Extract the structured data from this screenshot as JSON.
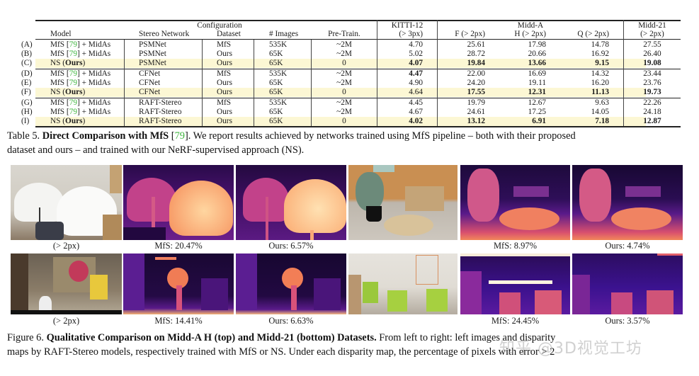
{
  "table": {
    "group_headers": {
      "configuration": "Configuration",
      "kitti": "KITTI-12",
      "midd_a": "Midd-A",
      "midd_21": "Midd-21"
    },
    "columns": {
      "model": "Model",
      "stereo": "Stereo Network",
      "dataset": "Dataset",
      "images": "# Images",
      "pretrain": "Pre-Train.",
      "kitti": "(> 3px)",
      "f": "F (> 2px)",
      "h": "H (> 2px)",
      "q": "Q (> 2px)",
      "m21": "(> 2px)"
    },
    "rows": [
      {
        "id": "(A)",
        "model_pre": "MfS ",
        "cite": "79",
        "model_post": " + MidAs",
        "stereo": "PSMNet",
        "dataset": "MfS",
        "images": "535K",
        "pretrain": "~2M",
        "kitti": "4.70",
        "f": "25.61",
        "h": "17.98",
        "q": "14.78",
        "m21": "27.55"
      },
      {
        "id": "(B)",
        "model_pre": "MfS ",
        "cite": "79",
        "model_post": " + MidAs",
        "stereo": "PSMNet",
        "dataset": "Ours",
        "images": "65K",
        "pretrain": "~2M",
        "kitti": "5.02",
        "f": "28.72",
        "h": "20.66",
        "q": "16.92",
        "m21": "26.40"
      },
      {
        "id": "(C)",
        "model_pre": "NS (",
        "bold": "Ours",
        "model_post": ")",
        "stereo": "PSMNet",
        "dataset": "Ours",
        "images": "65K",
        "pretrain": "0",
        "kitti": "4.07",
        "f": "19.84",
        "h": "13.66",
        "q": "9.15",
        "m21": "19.08"
      },
      {
        "id": "(D)",
        "model_pre": "MfS ",
        "cite": "79",
        "model_post": " + MidAs",
        "stereo": "CFNet",
        "dataset": "MfS",
        "images": "535K",
        "pretrain": "~2M",
        "kitti": "4.47",
        "f": "22.00",
        "h": "16.69",
        "q": "14.32",
        "m21": "23.44"
      },
      {
        "id": "(E)",
        "model_pre": "MfS ",
        "cite": "79",
        "model_post": " + MidAs",
        "stereo": "CFNet",
        "dataset": "Ours",
        "images": "65K",
        "pretrain": "~2M",
        "kitti": "4.90",
        "f": "24.20",
        "h": "19.11",
        "q": "16.20",
        "m21": "23.76"
      },
      {
        "id": "(F)",
        "model_pre": "NS (",
        "bold": "Ours",
        "model_post": ")",
        "stereo": "CFNet",
        "dataset": "Ours",
        "images": "65K",
        "pretrain": "0",
        "kitti": "4.64",
        "f": "17.55",
        "h": "12.31",
        "q": "11.13",
        "m21": "19.73"
      },
      {
        "id": "(G)",
        "model_pre": "MfS ",
        "cite": "79",
        "model_post": " + MidAs",
        "stereo": "RAFT-Stereo",
        "dataset": "MfS",
        "images": "535K",
        "pretrain": "~2M",
        "kitti": "4.45",
        "f": "19.79",
        "h": "12.67",
        "q": "9.63",
        "m21": "22.26"
      },
      {
        "id": "(H)",
        "model_pre": "MfS ",
        "cite": "79",
        "model_post": " + MidAs",
        "stereo": "RAFT-Stereo",
        "dataset": "Ours",
        "images": "65K",
        "pretrain": "~2M",
        "kitti": "4.67",
        "f": "24.61",
        "h": "17.25",
        "q": "14.05",
        "m21": "24.18"
      },
      {
        "id": "(I)",
        "model_pre": "NS (",
        "bold": "Ours",
        "model_post": ")",
        "stereo": "RAFT-Stereo",
        "dataset": "Ours",
        "images": "65K",
        "pretrain": "0",
        "kitti": "4.02",
        "f": "13.12",
        "h": "6.91",
        "q": "7.18",
        "m21": "12.87"
      }
    ],
    "caption": {
      "label": "Table 5.",
      "title": "Direct Comparison with MfS",
      "cite": "79",
      "line1_rest": ". We report results achieved by networks trained using MfS pipeline – both with their proposed",
      "line2": "dataset and ours – and trained with our NeRF-supervised approach (NS)."
    }
  },
  "figure": {
    "top_row": {
      "labels": [
        "(> 2px)",
        "MfS: 20.47%",
        "Ours: 6.57%",
        "",
        "MfS: 8.97%",
        "Ours: 4.74%"
      ]
    },
    "bottom_row": {
      "labels": [
        "(> 2px)",
        "MfS: 14.41%",
        "Ours: 6.63%",
        "",
        "MfS: 24.45%",
        "Ours: 3.57%"
      ]
    },
    "caption": {
      "label": "Figure 6.",
      "title": "Qualitative Comparison on Midd-A H (top) and Midd-21 (bottom) Datasets.",
      "line1_rest": " From left to right: left images and disparity",
      "line2": "maps by RAFT-Stereo models, respectively trained with MfS or NS. Under each disparity map, the percentage of pixels with error > 2"
    }
  },
  "watermark": "知乎 @3D视觉工坊"
}
